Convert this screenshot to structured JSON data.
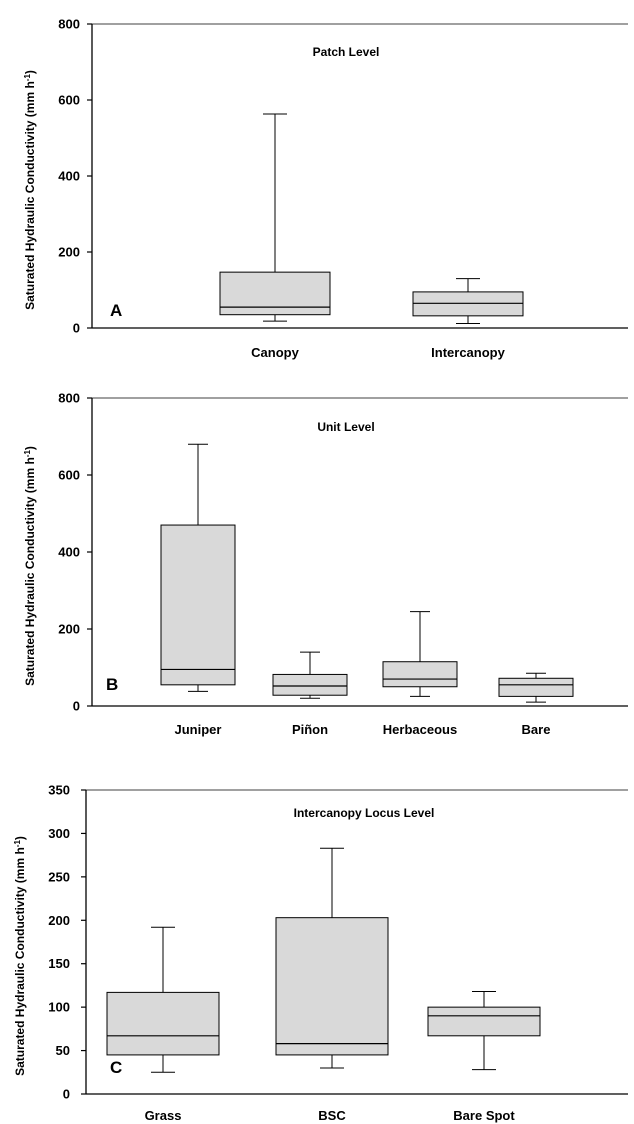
{
  "colors": {
    "box_fill": "#d9d9d9",
    "stroke": "#000000",
    "background": "#ffffff"
  },
  "chart_data": [
    {
      "type": "box",
      "panel": "A",
      "title": "Patch Level",
      "ylabel_main": "Saturated Hydraulic Conductivity (mm h",
      "ylabel_sup": "-1",
      "ylabel_close": ")",
      "ylim": [
        0,
        800
      ],
      "yticks": [
        "0",
        "200",
        "400",
        "600",
        "800"
      ],
      "ytick_values": [
        0,
        200,
        400,
        600,
        800
      ],
      "categories": [
        "Canopy",
        "Intercanopy"
      ],
      "boxes": [
        {
          "min": 18,
          "q1": 35,
          "median": 55,
          "q3": 147,
          "max": 563
        },
        {
          "min": 12,
          "q1": 32,
          "median": 65,
          "q3": 95,
          "max": 130
        }
      ]
    },
    {
      "type": "box",
      "panel": "B",
      "title": "Unit Level",
      "ylabel_main": "Saturated Hydraulic Conductivity (mm h",
      "ylabel_sup": "-1",
      "ylabel_close": ")",
      "ylim": [
        0,
        800
      ],
      "yticks": [
        "0",
        "200",
        "400",
        "600",
        "800"
      ],
      "ytick_values": [
        0,
        200,
        400,
        600,
        800
      ],
      "categories": [
        "Juniper",
        "Piñon",
        "Herbaceous",
        "Bare"
      ],
      "boxes": [
        {
          "min": 38,
          "q1": 55,
          "median": 95,
          "q3": 470,
          "max": 680
        },
        {
          "min": 20,
          "q1": 28,
          "median": 52,
          "q3": 82,
          "max": 140
        },
        {
          "min": 25,
          "q1": 50,
          "median": 70,
          "q3": 115,
          "max": 245
        },
        {
          "min": 10,
          "q1": 25,
          "median": 55,
          "q3": 72,
          "max": 85
        }
      ]
    },
    {
      "type": "box",
      "panel": "C",
      "title": "Intercanopy Locus Level",
      "ylabel_main": "Saturated Hydraulic Conductivity (mm h",
      "ylabel_sup": "-1",
      "ylabel_close": ")",
      "ylim": [
        0,
        350
      ],
      "yticks": [
        "0",
        "50",
        "100",
        "150",
        "200",
        "250",
        "300",
        "350"
      ],
      "ytick_values": [
        0,
        50,
        100,
        150,
        200,
        250,
        300,
        350
      ],
      "categories": [
        "Grass",
        "BSC",
        "Bare Spot"
      ],
      "boxes": [
        {
          "min": 25,
          "q1": 45,
          "median": 67,
          "q3": 117,
          "max": 192
        },
        {
          "min": 30,
          "q1": 45,
          "median": 58,
          "q3": 203,
          "max": 283
        },
        {
          "min": 28,
          "q1": 67,
          "median": 90,
          "q3": 100,
          "max": 118
        }
      ]
    }
  ]
}
